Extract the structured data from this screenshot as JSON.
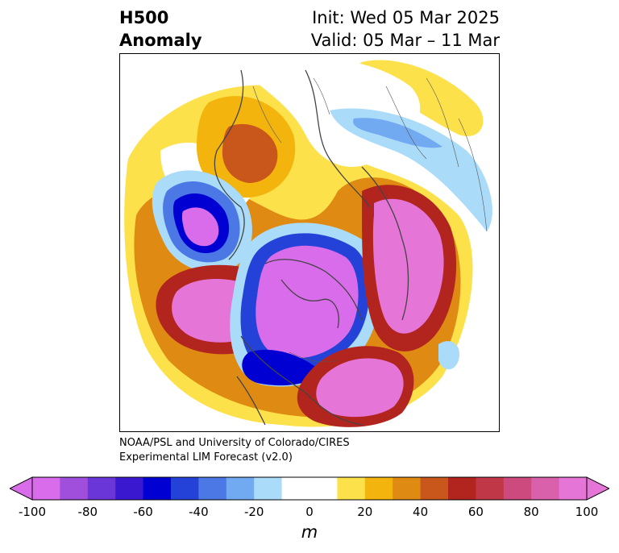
{
  "title": {
    "line1": "H500",
    "line2": "Anomaly"
  },
  "forecast": {
    "init": "Init: Wed 05 Mar 2025",
    "valid": "Valid: 05 Mar – 11 Mar"
  },
  "credit": {
    "line1": "NOAA/PSL and University of Colorado/CIRES",
    "line2": "Experimental LIM Forecast (v2.0)"
  },
  "colorbar": {
    "unit": "m",
    "ticks": [
      "-100",
      "-80",
      "-60",
      "-40",
      "-20",
      "0",
      "20",
      "40",
      "60",
      "80",
      "100"
    ],
    "bins": [
      {
        "from": -100,
        "to": -90,
        "color": "#d86cea"
      },
      {
        "from": -90,
        "to": -80,
        "color": "#a04fdc"
      },
      {
        "from": -80,
        "to": -70,
        "color": "#6a36d8"
      },
      {
        "from": -70,
        "to": -60,
        "color": "#3a18d0"
      },
      {
        "from": -60,
        "to": -50,
        "color": "#0000d2"
      },
      {
        "from": -50,
        "to": -40,
        "color": "#2442d8"
      },
      {
        "from": -40,
        "to": -30,
        "color": "#4c78e6"
      },
      {
        "from": -30,
        "to": -20,
        "color": "#72aaf2"
      },
      {
        "from": -20,
        "to": -10,
        "color": "#aadcfa"
      },
      {
        "from": -10,
        "to": 10,
        "color": "#ffffff"
      },
      {
        "from": 10,
        "to": 20,
        "color": "#fde14a"
      },
      {
        "from": 20,
        "to": 30,
        "color": "#f3b40e"
      },
      {
        "from": 30,
        "to": 40,
        "color": "#df8a12"
      },
      {
        "from": 40,
        "to": 50,
        "color": "#c9561a"
      },
      {
        "from": 50,
        "to": 60,
        "color": "#b2251f"
      },
      {
        "from": 60,
        "to": 70,
        "color": "#c03848"
      },
      {
        "from": 70,
        "to": 80,
        "color": "#cc4a7e"
      },
      {
        "from": 80,
        "to": 90,
        "color": "#d960aa"
      },
      {
        "from": 90,
        "to": 100,
        "color": "#e576d8"
      }
    ],
    "extend": "both"
  }
}
